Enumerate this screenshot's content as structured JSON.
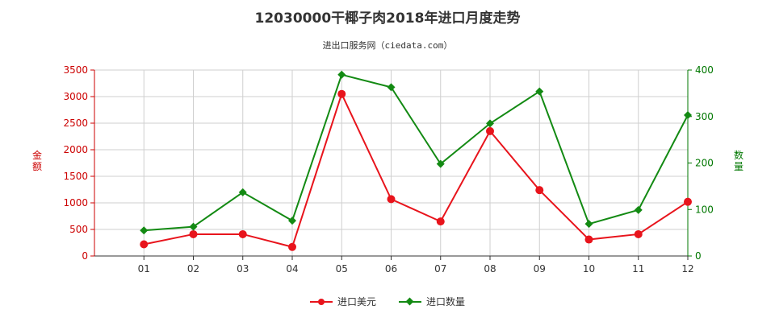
{
  "chart_data": {
    "type": "line",
    "title": "12030000干椰子肉2018年进口月度走势",
    "subtitle": "进出口服务网（ciedata.com）",
    "categories": [
      "01",
      "02",
      "03",
      "04",
      "05",
      "06",
      "07",
      "08",
      "09",
      "10",
      "11",
      "12"
    ],
    "ylabel_left": "金额",
    "ylabel_right": "数量",
    "ylim_left": [
      0,
      3500
    ],
    "ylim_right": [
      0,
      400
    ],
    "yticks_left": [
      0,
      500,
      1000,
      1500,
      2000,
      2500,
      3000,
      3500
    ],
    "yticks_right": [
      0,
      100,
      200,
      300,
      400
    ],
    "grid": true,
    "legend_position": "bottom",
    "series": [
      {
        "name": "进口美元",
        "axis": "left",
        "color": "#e8141c",
        "marker": "circle",
        "values": [
          220,
          410,
          410,
          170,
          3050,
          1070,
          650,
          2350,
          1240,
          310,
          410,
          1020
        ]
      },
      {
        "name": "进口数量",
        "axis": "right",
        "color": "#138a13",
        "marker": "diamond",
        "values": [
          55,
          63,
          137,
          76,
          390,
          363,
          198,
          285,
          354,
          69,
          99,
          303
        ]
      }
    ]
  }
}
